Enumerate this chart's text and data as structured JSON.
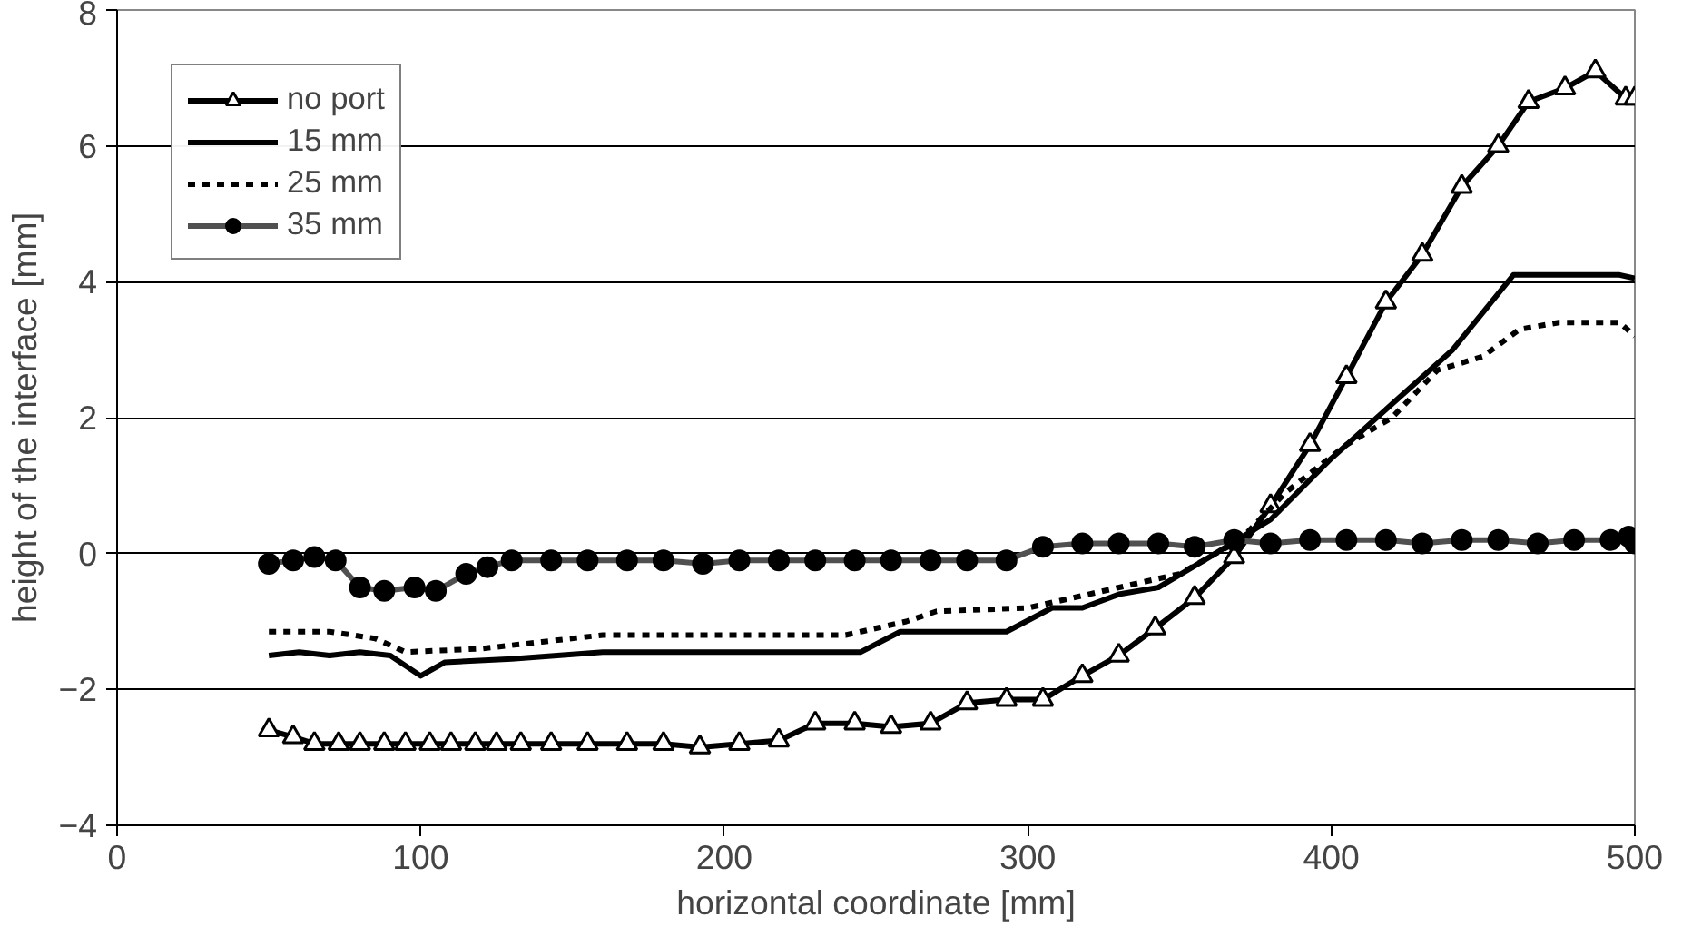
{
  "chart_data": {
    "type": "line",
    "xlabel": "horizontal coordinate [mm]",
    "ylabel": "height of the interface [mm]",
    "xlim": [
      0,
      500
    ],
    "xticks": [
      0,
      100,
      200,
      300,
      400,
      500
    ],
    "ylim": [
      -4,
      8
    ],
    "yticks": [
      -4,
      -2,
      0,
      2,
      4,
      6,
      8
    ],
    "grid": "y",
    "legend": "top left",
    "series": [
      {
        "name": "no port",
        "color": "#000000",
        "marker": "triangle",
        "line_style": "solid",
        "x": [
          50,
          58,
          65,
          73,
          80,
          88,
          95,
          103,
          110,
          118,
          125,
          133,
          143,
          155,
          168,
          180,
          192,
          205,
          218,
          230,
          243,
          255,
          268,
          280,
          293,
          305,
          318,
          330,
          342,
          355,
          368,
          380,
          393,
          405,
          418,
          430,
          443,
          455,
          465,
          477,
          487,
          497,
          500
        ],
        "values": [
          -2.6,
          -2.7,
          -2.8,
          -2.8,
          -2.8,
          -2.8,
          -2.8,
          -2.8,
          -2.8,
          -2.8,
          -2.8,
          -2.8,
          -2.8,
          -2.8,
          -2.8,
          -2.8,
          -2.85,
          -2.8,
          -2.75,
          -2.5,
          -2.5,
          -2.55,
          -2.5,
          -2.2,
          -2.15,
          -2.15,
          -1.8,
          -1.5,
          -1.1,
          -0.65,
          -0.05,
          0.7,
          1.6,
          2.6,
          3.7,
          4.4,
          5.4,
          6.0,
          6.65,
          6.85,
          7.1,
          6.7,
          6.7
        ]
      },
      {
        "name": "15 mm",
        "color": "#000000",
        "marker": "none",
        "line_style": "solid",
        "x": [
          50,
          60,
          70,
          80,
          90,
          100,
          108,
          130,
          160,
          245,
          258,
          293,
          308,
          318,
          330,
          343,
          360,
          380,
          400,
          420,
          440,
          460,
          495,
          500
        ],
        "values": [
          -1.5,
          -1.45,
          -1.5,
          -1.45,
          -1.5,
          -1.8,
          -1.6,
          -1.55,
          -1.45,
          -1.45,
          -1.15,
          -1.15,
          -0.8,
          -0.8,
          -0.6,
          -0.5,
          -0.05,
          0.5,
          1.4,
          2.2,
          3.0,
          4.1,
          4.1,
          4.05
        ]
      },
      {
        "name": "25 mm",
        "color": "#000000",
        "marker": "none",
        "line_style": "dashed",
        "x": [
          50,
          70,
          85,
          95,
          120,
          140,
          160,
          240,
          260,
          270,
          300,
          320,
          350,
          370,
          385,
          405,
          420,
          435,
          450,
          462,
          475,
          495,
          500
        ],
        "values": [
          -1.15,
          -1.15,
          -1.25,
          -1.45,
          -1.4,
          -1.3,
          -1.2,
          -1.2,
          -1.0,
          -0.85,
          -0.8,
          -0.6,
          -0.3,
          0.2,
          0.9,
          1.6,
          2.0,
          2.7,
          2.9,
          3.3,
          3.4,
          3.4,
          3.2
        ]
      },
      {
        "name": "35 mm",
        "color": "#505050",
        "marker": "circle",
        "line_style": "solid",
        "x": [
          50,
          58,
          65,
          72,
          80,
          88,
          98,
          105,
          115,
          122,
          130,
          143,
          155,
          168,
          180,
          193,
          205,
          218,
          230,
          243,
          255,
          268,
          280,
          293,
          305,
          318,
          330,
          343,
          355,
          368,
          380,
          393,
          405,
          418,
          430,
          443,
          455,
          468,
          480,
          492,
          498,
          500
        ],
        "values": [
          -0.15,
          -0.1,
          -0.05,
          -0.1,
          -0.5,
          -0.55,
          -0.5,
          -0.55,
          -0.3,
          -0.2,
          -0.1,
          -0.1,
          -0.1,
          -0.1,
          -0.1,
          -0.15,
          -0.1,
          -0.1,
          -0.1,
          -0.1,
          -0.1,
          -0.1,
          -0.1,
          -0.1,
          0.1,
          0.15,
          0.15,
          0.15,
          0.1,
          0.2,
          0.15,
          0.2,
          0.2,
          0.2,
          0.15,
          0.2,
          0.2,
          0.15,
          0.2,
          0.2,
          0.25,
          0.15
        ]
      }
    ]
  }
}
